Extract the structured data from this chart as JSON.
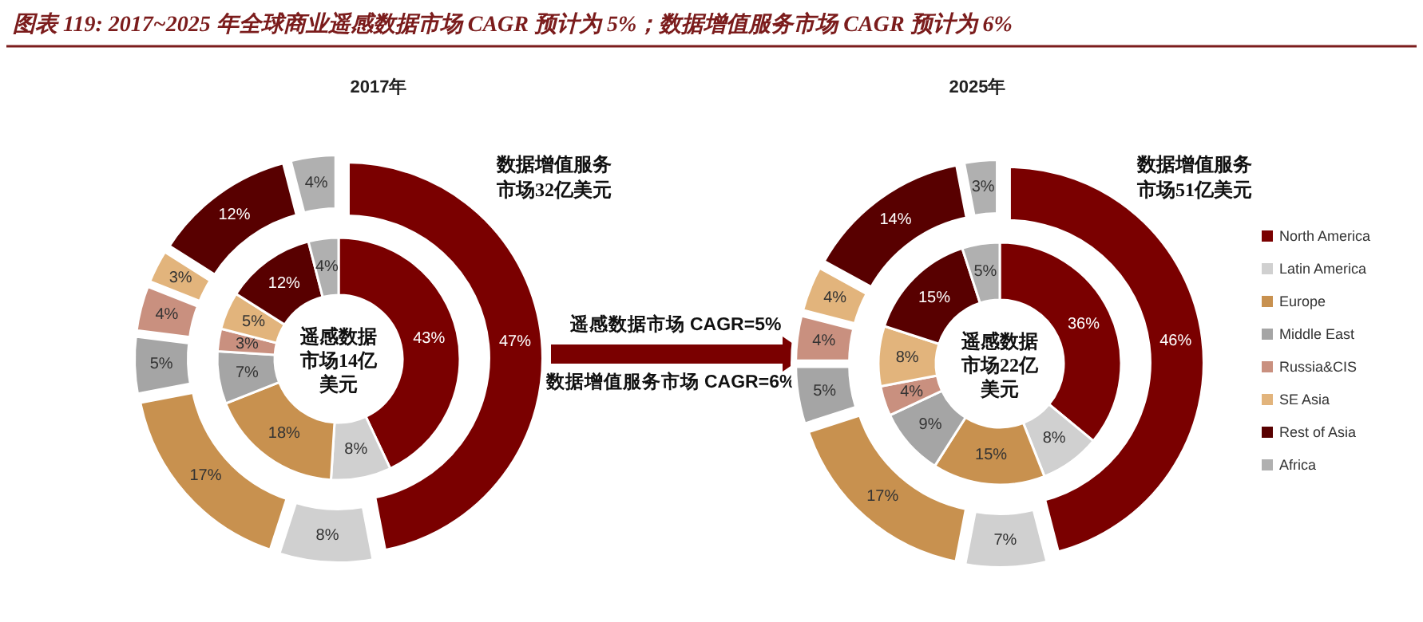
{
  "chart_data": [
    {
      "type": "donut",
      "title": "图表 119: 2017~2025 年全球商业遥感数据市场 CAGR 预计为 5%；数据增值服务市场 CAGR 预计为 6%",
      "subtitle": "2017年",
      "categories": [
        null,
        null,
        null,
        null,
        null,
        null,
        null,
        null
      ],
      "colors": [
        "#7a0000",
        "#d0d0d0",
        "#c8914f",
        "#a5a5a5",
        "#c9907f",
        "#e2b47c",
        "#580000",
        "#b0b0b0"
      ],
      "series": [
        {
          "values": [
            43,
            8,
            18,
            7,
            3,
            5,
            12,
            4
          ],
          "value_labels": [
            "43%",
            "8%",
            "18%",
            "7%",
            "3%",
            "5%",
            "12%",
            "4%"
          ]
        },
        {
          "values": [
            47,
            8,
            17,
            5,
            4,
            3,
            12,
            4
          ],
          "value_labels": [
            "47%",
            "8%",
            "17%",
            "5%",
            "4%",
            "3%",
            "12%",
            "4%"
          ]
        }
      ],
      "annotations": [
        "遥感数据市场14亿美元",
        "数据增值服务市场32亿美元",
        "遥感数据市场 CAGR=5%",
        "数据增值服务市场 CAGR=6%"
      ]
    },
    {
      "type": "donut",
      "title": "2025年",
      "categories": [
        "North America",
        "Latin America",
        "Europe",
        "Middle East",
        "Russia&CIS",
        "SE Asia",
        "Rest of Asia",
        "Africa"
      ],
      "colors": [
        "#7a0000",
        "#d0d0d0",
        "#c8914f",
        "#a5a5a5",
        "#c9907f",
        "#e2b47c",
        "#580000",
        "#b0b0b0"
      ],
      "series": [
        {
          "values": [
            36,
            8,
            15,
            9,
            4,
            8,
            15,
            5
          ],
          "value_labels": [
            "36%",
            "8%",
            "15%",
            "9%",
            "4%",
            "8%",
            "15%",
            "5%"
          ]
        },
        {
          "values": [
            46,
            7,
            17,
            5,
            4,
            4,
            14,
            3
          ],
          "value_labels": [
            "46%",
            "7%",
            "17%",
            "5%",
            "4%",
            "4%",
            "14%",
            "3%"
          ]
        }
      ],
      "legend": "right",
      "annotations": [
        "遥感数据市场22亿美元",
        "数据增值服务市场51亿美元"
      ]
    }
  ]
}
